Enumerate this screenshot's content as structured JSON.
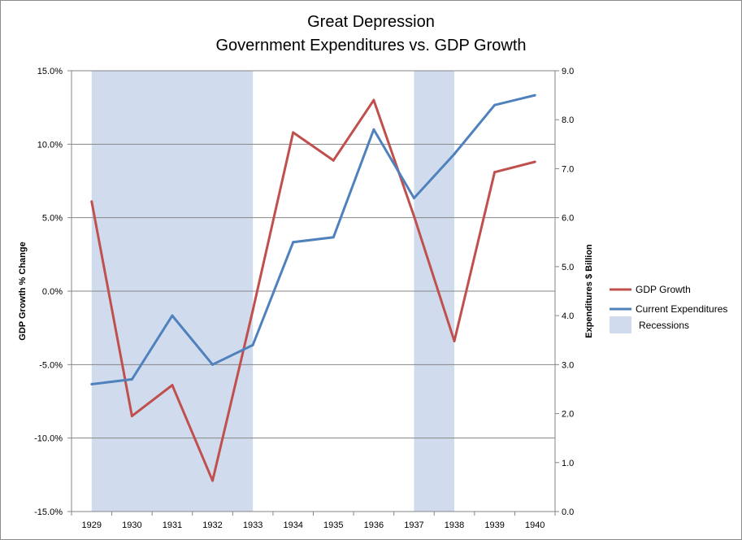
{
  "chart_data": {
    "type": "line",
    "title": [
      "Great Depression",
      "Government Expenditures vs. GDP Growth"
    ],
    "categories": [
      "1929",
      "1930",
      "1931",
      "1932",
      "1933",
      "1934",
      "1935",
      "1936",
      "1937",
      "1938",
      "1939",
      "1940"
    ],
    "ylabel_left": "GDP Growth % Change",
    "ylabel_right": "Expenditures $ Billion",
    "ylim_left": [
      -15,
      15
    ],
    "ylim_right": [
      0,
      9
    ],
    "yticks_left": [
      "-15.0%",
      "-10.0%",
      "-5.0%",
      "0.0%",
      "5.0%",
      "10.0%",
      "15.0%"
    ],
    "yticks_right": [
      "0.0",
      "1.0",
      "2.0",
      "3.0",
      "4.0",
      "5.0",
      "6.0",
      "7.0",
      "8.0",
      "9.0"
    ],
    "gridlines": true,
    "legend_position": "right",
    "series": [
      {
        "name": "GDP Growth",
        "axis": "left",
        "color": "#c0504d",
        "values": [
          6.1,
          -8.5,
          -6.4,
          -12.9,
          -1.3,
          10.8,
          8.9,
          13.0,
          5.1,
          -3.4,
          8.1,
          8.8
        ]
      },
      {
        "name": "Current Expenditures",
        "axis": "right",
        "color": "#4f81bd",
        "values": [
          2.6,
          2.7,
          4.0,
          3.0,
          3.4,
          5.5,
          5.6,
          7.8,
          6.4,
          7.3,
          8.3,
          8.5
        ]
      }
    ],
    "shaded_regions": {
      "name": "Recessions",
      "color": "#d0dcee",
      "ranges": [
        [
          "1929",
          "1933"
        ],
        [
          "1937",
          "1938"
        ]
      ]
    }
  }
}
